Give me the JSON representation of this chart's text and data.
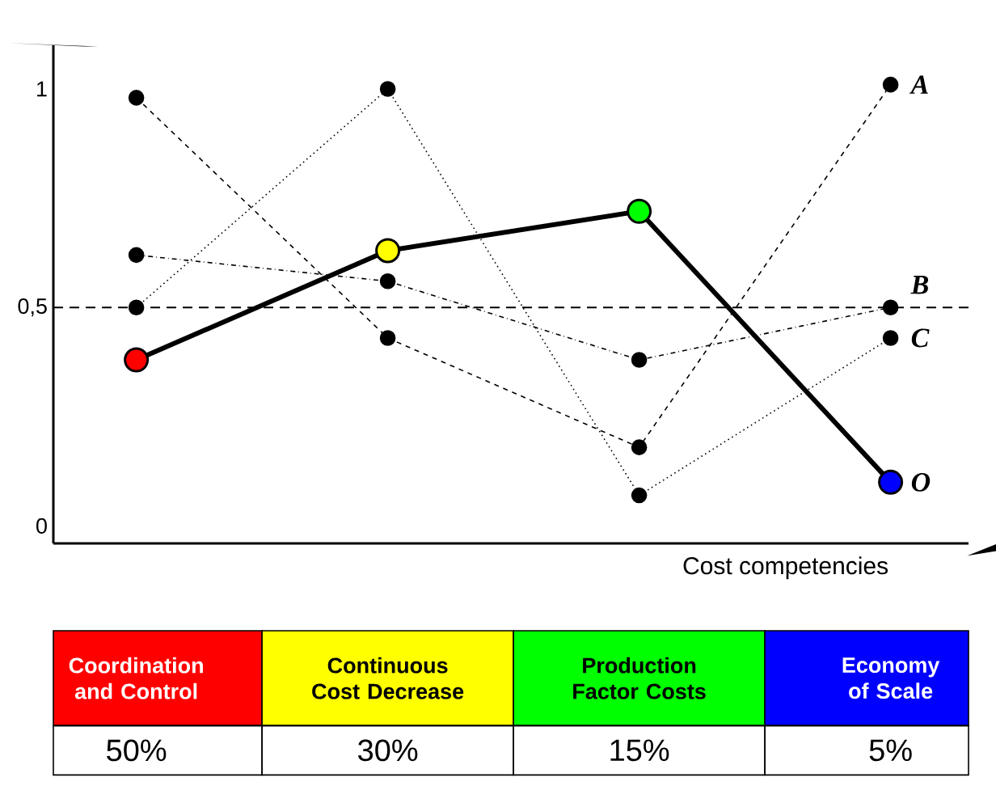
{
  "chart_data": {
    "type": "line",
    "xlabel": "Cost competencies",
    "categories": [
      "Coordination and Control",
      "Continuous Cost Decrease",
      "Production Factor Costs",
      "Economy of Scale"
    ],
    "series": [
      {
        "name": "A",
        "color": "#000000",
        "line_style": "dashed",
        "values": [
          0.98,
          0.43,
          0.18,
          1.01
        ]
      },
      {
        "name": "B",
        "color": "#000000",
        "line_style": "dashdot",
        "values": [
          0.62,
          0.56,
          0.38,
          0.5
        ]
      },
      {
        "name": "C",
        "color": "#000000",
        "line_style": "dotted",
        "values": [
          0.5,
          1.0,
          0.07,
          0.43
        ]
      },
      {
        "name": "O",
        "color": "#000000",
        "line_style": "solid",
        "colors": [
          "#ff0000",
          "#ffff00",
          "#00ff00",
          "#0000ff"
        ],
        "values": [
          0.38,
          0.63,
          0.72,
          0.1
        ]
      }
    ],
    "annotations": [
      "50%",
      "30%",
      "15%",
      "5%"
    ],
    "ref_lines": [
      {
        "axis": "y",
        "value": 0.5,
        "line_style": "dashed"
      }
    ],
    "ylim": [
      -0.04,
      1.1
    ],
    "yticks": [
      0,
      {
        "value": 0.5,
        "label": "0,5"
      },
      1
    ],
    "marker": "circle",
    "grid": false
  }
}
